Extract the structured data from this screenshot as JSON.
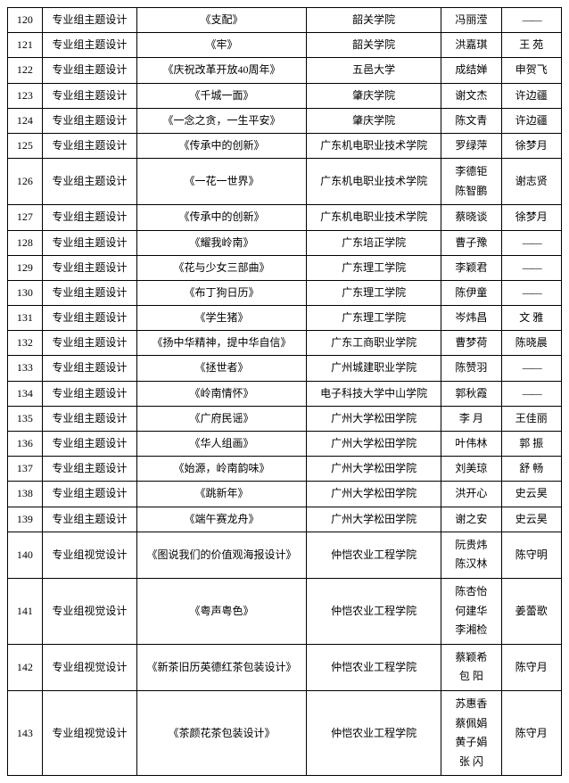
{
  "rows": [
    {
      "num": "120",
      "cat": "专业组主题设计",
      "title": "《支配》",
      "school": "韶关学院",
      "names": "冯丽滢",
      "last": "—"
    },
    {
      "num": "121",
      "cat": "专业组主题设计",
      "title": "《牢》",
      "school": "韶关学院",
      "names": "洪嘉琪",
      "last": "王 苑"
    },
    {
      "num": "122",
      "cat": "专业组主题设计",
      "title": "《庆祝改革开放40周年》",
      "school": "五邑大学",
      "names": "成结婵",
      "last": "申贺飞"
    },
    {
      "num": "123",
      "cat": "专业组主题设计",
      "title": "《千城一面》",
      "school": "肇庆学院",
      "names": "谢文杰",
      "last": "许边疆"
    },
    {
      "num": "124",
      "cat": "专业组主题设计",
      "title": "《一念之贪，一生平安》",
      "school": "肇庆学院",
      "names": "陈文青",
      "last": "许边疆"
    },
    {
      "num": "125",
      "cat": "专业组主题设计",
      "title": "《传承中的创新》",
      "school": "广东机电职业技术学院",
      "names": "罗绿萍",
      "last": "徐梦月"
    },
    {
      "num": "126",
      "cat": "专业组主题设计",
      "title": "《一花一世界》",
      "school": "广东机电职业技术学院",
      "names": "李德钜\n陈智鹏",
      "last": "谢志贤"
    },
    {
      "num": "127",
      "cat": "专业组主题设计",
      "title": "《传承中的创新》",
      "school": "广东机电职业技术学院",
      "names": "蔡晓谈",
      "last": "徐梦月"
    },
    {
      "num": "128",
      "cat": "专业组主题设计",
      "title": "《耀我岭南》",
      "school": "广东培正学院",
      "names": "曹子豫",
      "last": "—"
    },
    {
      "num": "129",
      "cat": "专业组主题设计",
      "title": "《花与少女三部曲》",
      "school": "广东理工学院",
      "names": "李颖君",
      "last": "—"
    },
    {
      "num": "130",
      "cat": "专业组主题设计",
      "title": "《布丁狗日历》",
      "school": "广东理工学院",
      "names": "陈伊童",
      "last": "—"
    },
    {
      "num": "131",
      "cat": "专业组主题设计",
      "title": "《学生猪》",
      "school": "广东理工学院",
      "names": "岑炜昌",
      "last": "文 雅"
    },
    {
      "num": "132",
      "cat": "专业组主题设计",
      "title": "《扬中华精神，提中华自信》",
      "school": "广东工商职业学院",
      "names": "曹梦荷",
      "last": "陈晓晨"
    },
    {
      "num": "133",
      "cat": "专业组主题设计",
      "title": "《拯世者》",
      "school": "广州城建职业学院",
      "names": "陈赞羽",
      "last": "—"
    },
    {
      "num": "134",
      "cat": "专业组主题设计",
      "title": "《岭南情怀》",
      "school": "电子科技大学中山学院",
      "names": "郭秋霞",
      "last": "—"
    },
    {
      "num": "135",
      "cat": "专业组主题设计",
      "title": "《广府民谣》",
      "school": "广州大学松田学院",
      "names": "李 月",
      "last": "王佳丽"
    },
    {
      "num": "136",
      "cat": "专业组主题设计",
      "title": "《华人组画》",
      "school": "广州大学松田学院",
      "names": "叶伟林",
      "last": "郭 振"
    },
    {
      "num": "137",
      "cat": "专业组主题设计",
      "title": "《始源，岭南韵味》",
      "school": "广州大学松田学院",
      "names": "刘美琼",
      "last": "舒 畅"
    },
    {
      "num": "138",
      "cat": "专业组主题设计",
      "title": "《跳新年》",
      "school": "广州大学松田学院",
      "names": "洪开心",
      "last": "史云昊"
    },
    {
      "num": "139",
      "cat": "专业组主题设计",
      "title": "《端午赛龙舟》",
      "school": "广州大学松田学院",
      "names": "谢之安",
      "last": "史云昊"
    },
    {
      "num": "140",
      "cat": "专业组视觉设计",
      "title": "《图说我们的价值观海报设计》",
      "school": "仲恺农业工程学院",
      "names": "阮贵炜\n陈汉林",
      "last": "陈守明"
    },
    {
      "num": "141",
      "cat": "专业组视觉设计",
      "title": "《粤声粤色》",
      "school": "仲恺农业工程学院",
      "names": "陈杏怡\n何建华\n李湘检",
      "last": "姜蕾歌"
    },
    {
      "num": "142",
      "cat": "专业组视觉设计",
      "title": "《新茶旧历英德红茶包装设计》",
      "school": "仲恺农业工程学院",
      "names": "蔡颖希\n包 阳",
      "last": "陈守月"
    },
    {
      "num": "143",
      "cat": "专业组视觉设计",
      "title": "《茶颜花茶包装设计》",
      "school": "仲恺农业工程学院",
      "names": "苏惠香\n蔡佩娟\n黄子娟\n张 闪",
      "last": "陈守月"
    }
  ]
}
